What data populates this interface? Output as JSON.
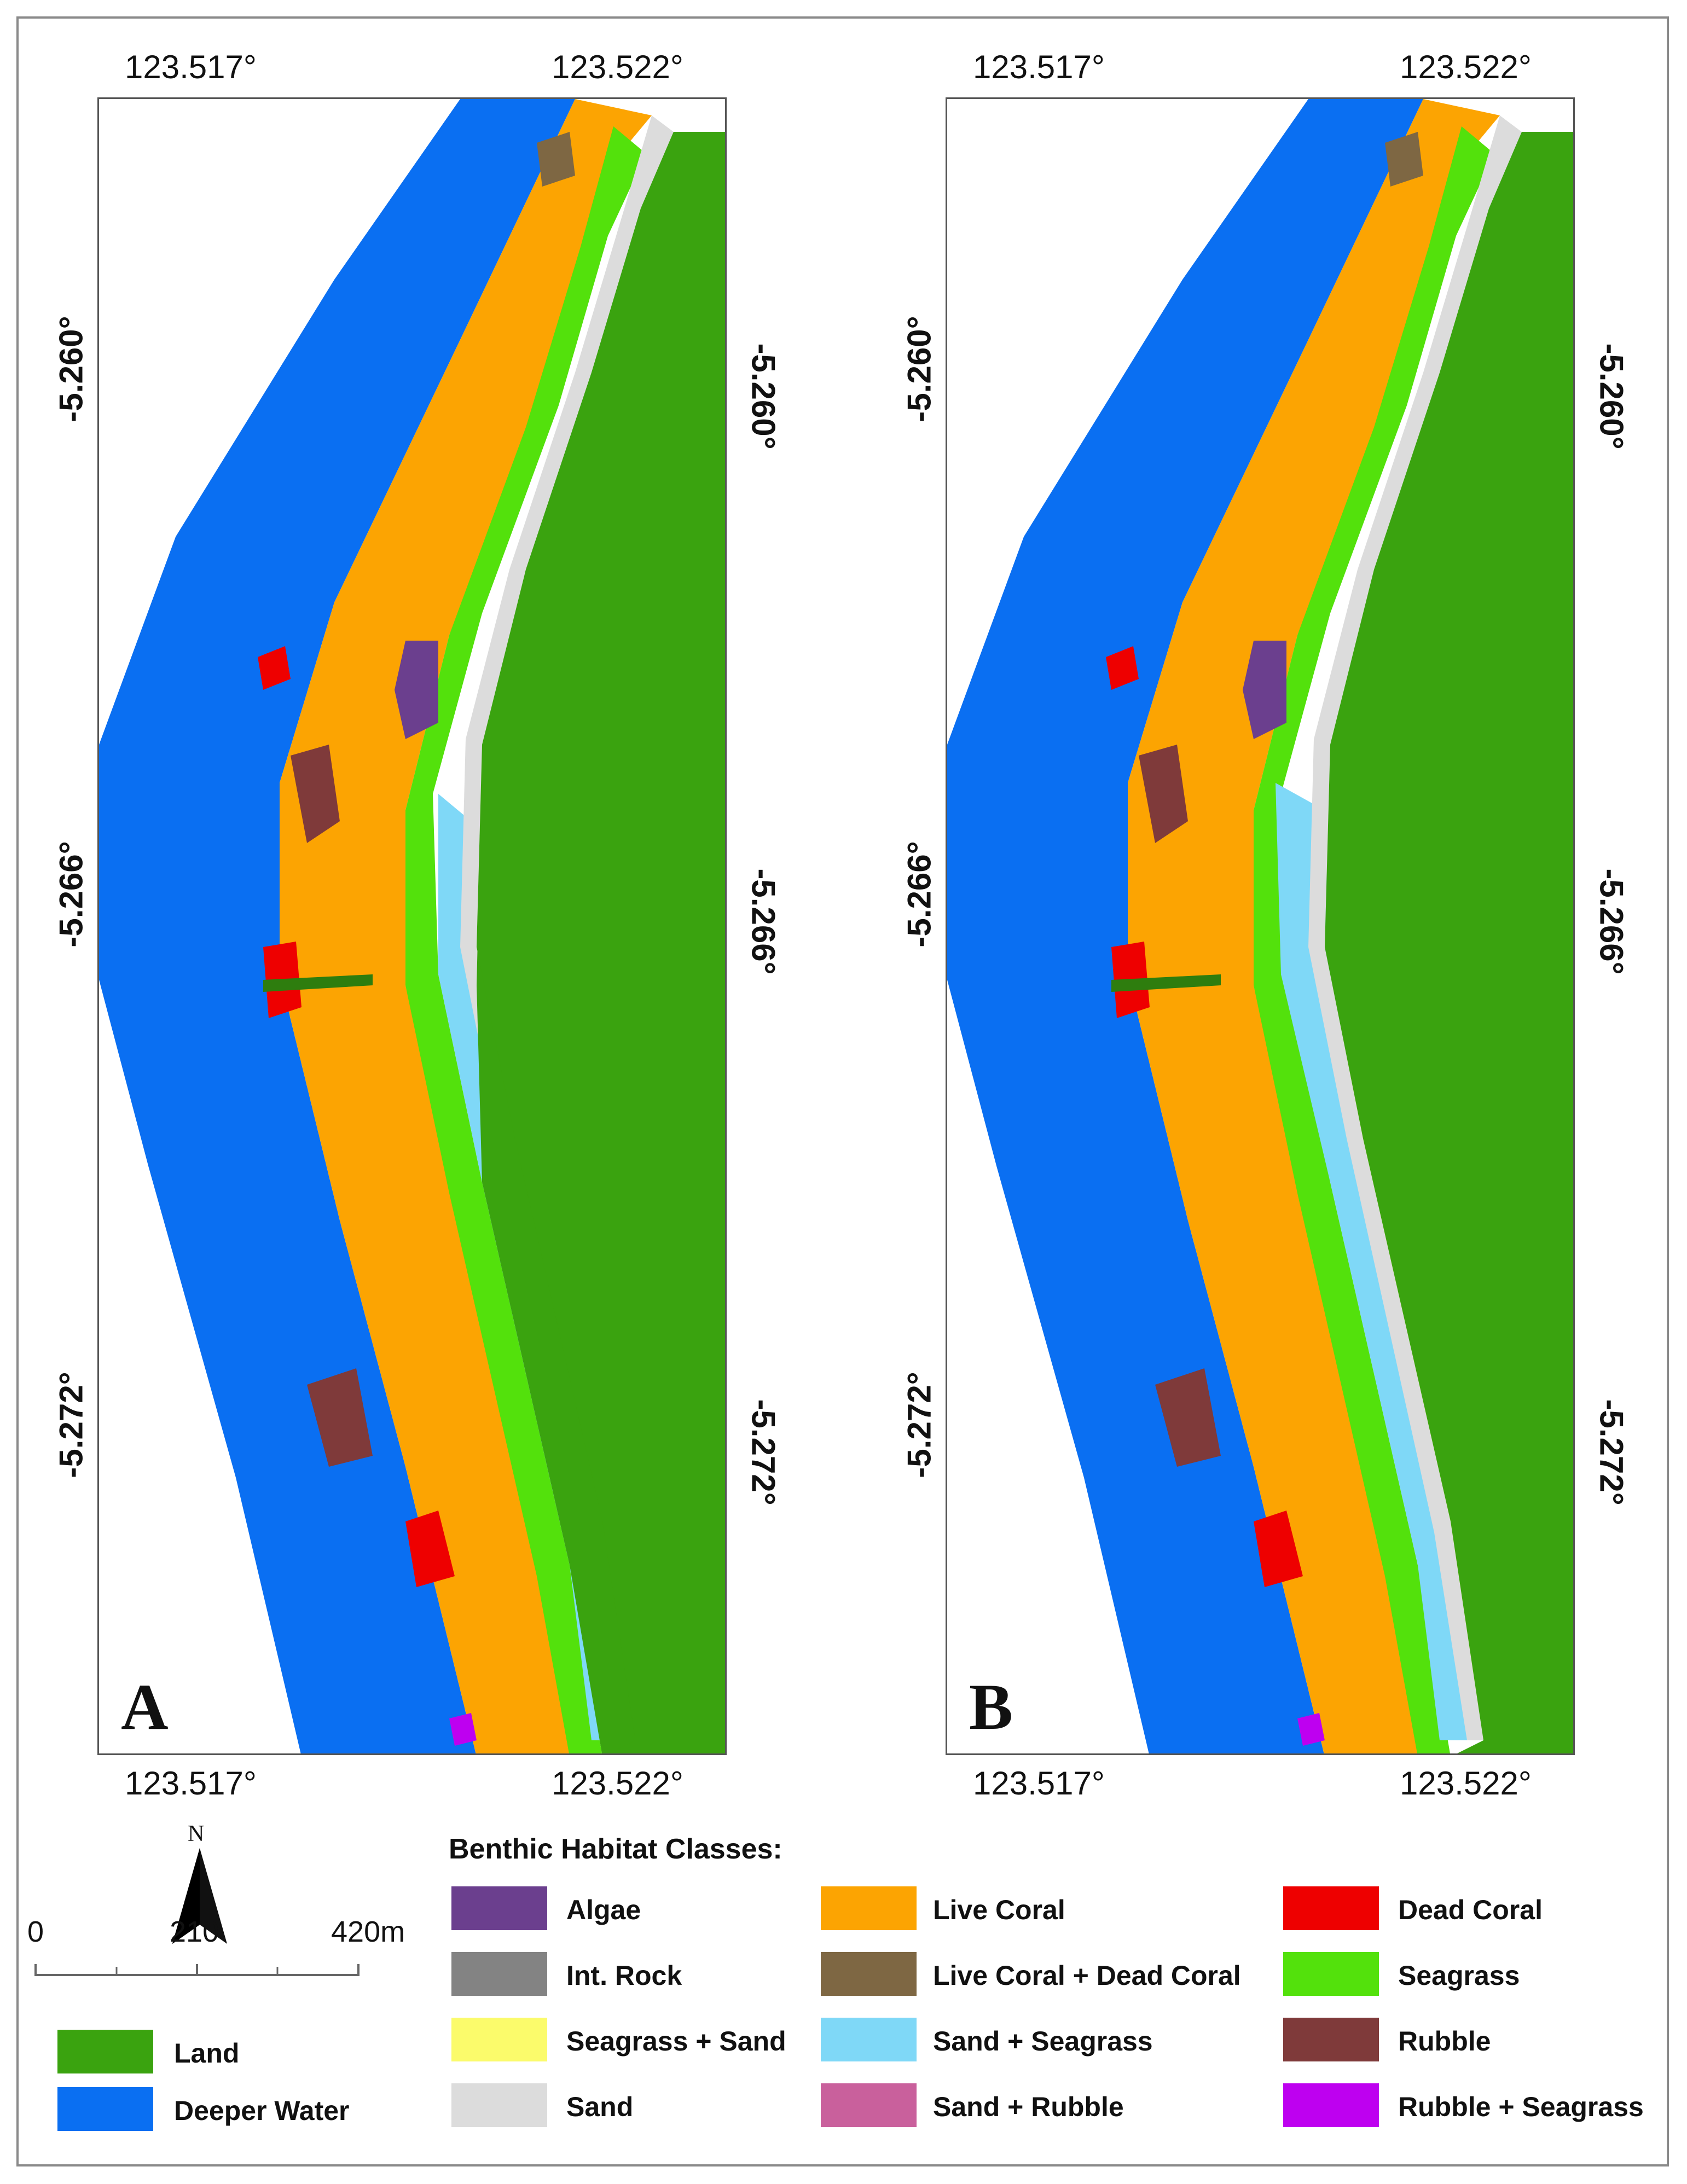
{
  "panels": [
    {
      "letter": "A",
      "lon_top_left": "123.517°",
      "lon_top_right": "123.522°",
      "lon_bottom_left": "123.517°",
      "lon_bottom_right": "123.522°",
      "lat_left": [
        "-5.260°",
        "-5.266°",
        "-5.272°"
      ],
      "lat_right": [
        "-5.260°",
        "-5.266°",
        "-5.272°"
      ]
    },
    {
      "letter": "B",
      "lon_top_left": "123.517°",
      "lon_top_right": "123.522°",
      "lon_bottom_left": "123.517°",
      "lon_bottom_right": "123.522°",
      "lat_left": [
        "-5.260°",
        "-5.266°",
        "-5.272°"
      ],
      "lat_right": [
        "-5.260°",
        "-5.266°",
        "-5.272°"
      ]
    }
  ],
  "north_arrow": {
    "label": "N"
  },
  "scale_bar": {
    "labels": [
      "0",
      "210",
      "420m"
    ]
  },
  "base_legend": [
    {
      "label": "Land",
      "color": "#3aa30f"
    },
    {
      "label": "Deeper Water",
      "color": "#0a6ff2"
    }
  ],
  "legend": {
    "title": "Benthic Habitat Classes:",
    "classes": [
      {
        "label": "Algae",
        "color": "#6b3f8e"
      },
      {
        "label": "Int. Rock",
        "color": "#838383"
      },
      {
        "label": "Seagrass + Sand",
        "color": "#fbfb6b"
      },
      {
        "label": "Sand",
        "color": "#dcdcdc"
      },
      {
        "label": "Live Coral",
        "color": "#fca402"
      },
      {
        "label": "Live Coral + Dead Coral",
        "color": "#7e6743"
      },
      {
        "label": "Sand + Seagrass",
        "color": "#7fd8f7"
      },
      {
        "label": "Sand + Rubble",
        "color": "#c9609c"
      },
      {
        "label": "Dead Coral",
        "color": "#ee0000"
      },
      {
        "label": "Seagrass",
        "color": "#53e10c"
      },
      {
        "label": "Rubble",
        "color": "#7f3a3a"
      },
      {
        "label": "Rubble + Seagrass",
        "color": "#be00f0"
      }
    ]
  }
}
